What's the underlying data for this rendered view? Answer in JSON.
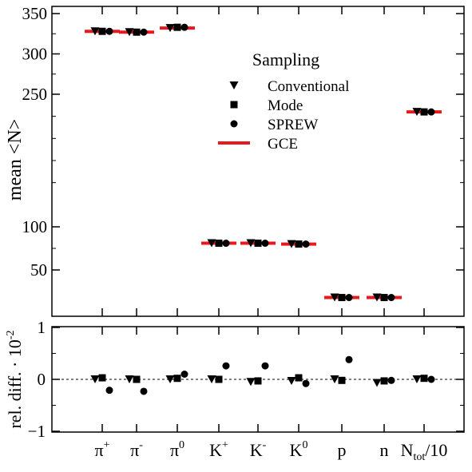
{
  "chart_data": [
    {
      "type": "scatter",
      "ylabel": "mean <N>",
      "yticks": [
        50,
        100,
        250,
        300,
        350
      ],
      "ylim": [
        5,
        355
      ],
      "categories": [
        "π+",
        "π-",
        "π0",
        "K+",
        "K-",
        "K0",
        "p",
        "n",
        "Ntot/10"
      ],
      "legend": {
        "title": "Sampling",
        "placement": "upper-center",
        "entries": [
          "Conventional",
          "Mode",
          "SPREW",
          "GCE"
        ]
      },
      "series": [
        {
          "name": "Conventional",
          "marker": "triangle-down",
          "values": [
            328,
            327,
            332,
            81,
            81,
            80,
            18,
            18,
            230
          ]
        },
        {
          "name": "Mode",
          "marker": "square",
          "values": [
            328,
            327,
            333,
            81,
            81,
            80,
            18,
            18,
            230
          ]
        },
        {
          "name": "SPREW",
          "marker": "circle",
          "values": [
            328,
            327,
            333,
            81,
            81,
            80,
            18,
            18,
            230
          ]
        },
        {
          "name": "GCE",
          "marker": "line",
          "color": "#e8191d",
          "values": [
            328,
            327,
            332,
            81,
            81,
            80,
            18,
            18,
            230
          ]
        }
      ]
    },
    {
      "type": "scatter",
      "ylabel": "rel. diff. · 10",
      "ylabel_exp": "-2",
      "yticks": [
        -1,
        0,
        1
      ],
      "yticklabels": [
        "−1",
        "0",
        "1"
      ],
      "ylim": [
        -1,
        1
      ],
      "reference_line": 0,
      "categories": [
        "π+",
        "π-",
        "π0",
        "K+",
        "K-",
        "K0",
        "p",
        "n",
        "Ntot/10"
      ],
      "series": [
        {
          "name": "Conventional",
          "marker": "triangle-down",
          "values": [
            0.0,
            0.0,
            0.0,
            0.0,
            -0.05,
            -0.03,
            0.0,
            -0.07,
            0.0
          ]
        },
        {
          "name": "Mode",
          "marker": "square",
          "values": [
            0.03,
            0.0,
            0.02,
            0.0,
            -0.03,
            0.03,
            -0.02,
            -0.03,
            0.02
          ]
        },
        {
          "name": "SPREW",
          "marker": "circle",
          "values": [
            -0.21,
            -0.23,
            0.1,
            0.26,
            0.26,
            -0.08,
            0.38,
            -0.02,
            0.0
          ]
        }
      ]
    }
  ],
  "xaxis": {
    "ticklabels": [
      {
        "base": "π",
        "sup": "+",
        "sub": ""
      },
      {
        "base": "π",
        "sup": "-",
        "sub": ""
      },
      {
        "base": "π",
        "sup": "0",
        "sub": ""
      },
      {
        "base": "K",
        "sup": "+",
        "sub": ""
      },
      {
        "base": "K",
        "sup": "-",
        "sub": ""
      },
      {
        "base": "K",
        "sup": "0",
        "sub": ""
      },
      {
        "base": "p",
        "sup": "",
        "sub": ""
      },
      {
        "base": "n",
        "sup": "",
        "sub": ""
      },
      {
        "base": "N",
        "sup": "",
        "sub": "tot",
        "tail": "/10"
      }
    ]
  }
}
